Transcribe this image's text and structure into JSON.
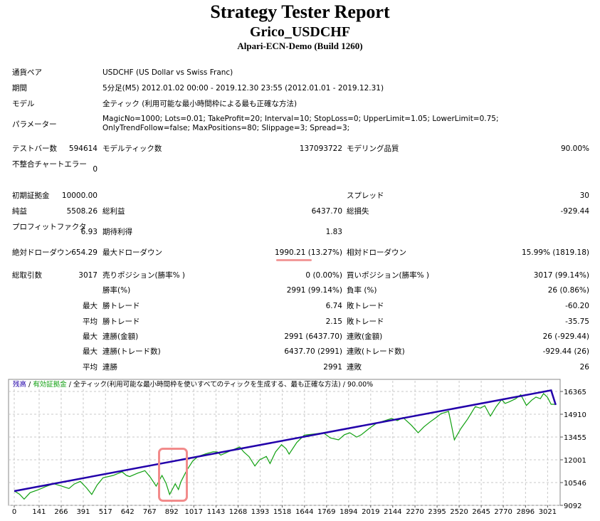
{
  "header": {
    "title": "Strategy Tester Report",
    "expert": "Grico_USDCHF",
    "server": "Alpari-ECN-Demo (Build 1260)"
  },
  "info": [
    {
      "label": "通貨ペア",
      "value": "USDCHF (US Dollar vs Swiss Franc)"
    },
    {
      "label": "期間",
      "value": "5分足(M5) 2012.01.02 00:00 - 2019.12.30 23:55 (2012.01.01 - 2019.12.31)"
    },
    {
      "label": "モデル",
      "value": "全ティック (利用可能な最小時間枠による最も正確な方法)"
    },
    {
      "label": "パラメーター",
      "value": "MagicNo=1000; Lots=0.01; TakeProfit=20; Interval=10; StopLoss=0; UpperLimit=1.05; LowerLimit=0.75; OnlyTrendFollow=false; MaxPositions=80; Slippage=3; Spread=3;"
    }
  ],
  "stats": [
    [
      "テストバー数",
      "594614",
      "モデルティック数",
      "137093722",
      "モデリング品質",
      "90.00%"
    ],
    [
      "不整合チャートエラー",
      "0",
      "",
      "",
      "",
      ""
    ],
    [
      "初期証拠金",
      "10000.00",
      "",
      "",
      "スプレッド",
      "30"
    ],
    [
      "純益",
      "5508.26",
      "総利益",
      "6437.70",
      "総損失",
      "-929.44"
    ],
    [
      "プロフィットファクタ",
      "6.93",
      "期待利得",
      "1.83",
      "",
      ""
    ],
    [
      "絶対ドローダウン",
      "654.29",
      "最大ドローダウン",
      "1990.21 (13.27%)",
      "相対ドローダウン",
      "15.99% (1819.18)"
    ],
    [
      "総取引数",
      "3017",
      "売りポジション(勝率% )",
      "0 (0.00%)",
      "買いポジション(勝率% )",
      "3017 (99.14%)"
    ],
    [
      "",
      "",
      "勝率(%)",
      "2991 (99.14%)",
      "負率 (%)",
      "26 (0.86%)"
    ],
    [
      "",
      "最大",
      "勝トレード",
      "6.74",
      "敗トレード",
      "-60.20"
    ],
    [
      "",
      "平均",
      "勝トレード",
      "2.15",
      "敗トレード",
      "-35.75"
    ],
    [
      "",
      "最大",
      "連勝(金額)",
      "2991 (6437.70)",
      "連敗(金額)",
      "26 (-929.44)"
    ],
    [
      "",
      "最大",
      "連勝(トレード数)",
      "6437.70 (2991)",
      "連敗(トレード数)",
      "-929.44 (26)"
    ],
    [
      "",
      "平均",
      "連勝",
      "2991",
      "連敗",
      "26"
    ]
  ],
  "chart_data": {
    "type": "line",
    "legend": {
      "balance": "残高",
      "sep1": " / ",
      "equity": "有効証拠金",
      "rest": " / 全ティック(利用可能な最小時間枠を使いすべてのティックを生成する、最も正確な方法) / 90.00%"
    },
    "colors": {
      "balance": "#2200aa",
      "equity": "#10a010"
    },
    "xticks": [
      0,
      141,
      266,
      391,
      517,
      642,
      767,
      892,
      1017,
      1143,
      1268,
      1393,
      1518,
      1644,
      1769,
      1894,
      2019,
      2144,
      2270,
      2395,
      2520,
      2645,
      2770,
      2896,
      3021
    ],
    "yticks": [
      16365,
      14910,
      13455,
      12001,
      10546,
      9092
    ],
    "xlim": [
      0,
      3080
    ],
    "ylim": [
      9092,
      16365
    ],
    "series": [
      {
        "name": "残高",
        "points": [
          [
            0,
            10000
          ],
          [
            3041,
            16437
          ],
          [
            3067,
            15508
          ]
        ]
      },
      {
        "name": "有効証拠金",
        "points": [
          [
            0,
            10015
          ],
          [
            30,
            9800
          ],
          [
            56,
            9487
          ],
          [
            90,
            9900
          ],
          [
            138,
            10093
          ],
          [
            180,
            10300
          ],
          [
            224,
            10470
          ],
          [
            260,
            10350
          ],
          [
            310,
            10170
          ],
          [
            340,
            10450
          ],
          [
            374,
            10624
          ],
          [
            410,
            10200
          ],
          [
            439,
            9788
          ],
          [
            470,
            10400
          ],
          [
            503,
            10852
          ],
          [
            560,
            11000
          ],
          [
            611,
            11229
          ],
          [
            635,
            11000
          ],
          [
            654,
            10927
          ],
          [
            700,
            11150
          ],
          [
            740,
            11305
          ],
          [
            770,
            10900
          ],
          [
            804,
            10320
          ],
          [
            837,
            11002
          ],
          [
            860,
            10500
          ],
          [
            880,
            9788
          ],
          [
            900,
            10200
          ],
          [
            912,
            10470
          ],
          [
            930,
            10100
          ],
          [
            944,
            10600
          ],
          [
            976,
            11305
          ],
          [
            1010,
            11900
          ],
          [
            1041,
            12215
          ],
          [
            1090,
            12400
          ],
          [
            1127,
            12516
          ],
          [
            1150,
            12500
          ],
          [
            1170,
            12300
          ],
          [
            1220,
            12550
          ],
          [
            1277,
            12821
          ],
          [
            1300,
            12500
          ],
          [
            1330,
            12200
          ],
          [
            1363,
            11606
          ],
          [
            1390,
            12000
          ],
          [
            1428,
            12215
          ],
          [
            1449,
            11760
          ],
          [
            1480,
            12500
          ],
          [
            1514,
            12970
          ],
          [
            1540,
            12700
          ],
          [
            1557,
            12366
          ],
          [
            1600,
            13100
          ],
          [
            1643,
            13580
          ],
          [
            1700,
            13650
          ],
          [
            1751,
            13730
          ],
          [
            1790,
            13400
          ],
          [
            1837,
            13275
          ],
          [
            1870,
            13600
          ],
          [
            1901,
            13730
          ],
          [
            1940,
            13450
          ],
          [
            1966,
            13600
          ],
          [
            2010,
            14000
          ],
          [
            2052,
            14335
          ],
          [
            2100,
            14500
          ],
          [
            2138,
            14640
          ],
          [
            2170,
            14500
          ],
          [
            2202,
            14700
          ],
          [
            2250,
            14200
          ],
          [
            2288,
            13730
          ],
          [
            2320,
            14100
          ],
          [
            2353,
            14400
          ],
          [
            2390,
            14700
          ],
          [
            2417,
            14944
          ],
          [
            2460,
            15094
          ],
          [
            2475,
            14300
          ],
          [
            2493,
            13275
          ],
          [
            2530,
            14000
          ],
          [
            2568,
            14600
          ],
          [
            2611,
            15398
          ],
          [
            2640,
            15300
          ],
          [
            2665,
            15450
          ],
          [
            2697,
            14790
          ],
          [
            2730,
            15400
          ],
          [
            2761,
            15853
          ],
          [
            2780,
            15600
          ],
          [
            2804,
            15700
          ],
          [
            2840,
            15900
          ],
          [
            2869,
            16155
          ],
          [
            2901,
            15474
          ],
          [
            2930,
            15800
          ],
          [
            2955,
            16004
          ],
          [
            2980,
            15900
          ],
          [
            2998,
            16232
          ],
          [
            3020,
            16000
          ],
          [
            3041,
            15549
          ],
          [
            3067,
            15549
          ]
        ]
      }
    ]
  }
}
